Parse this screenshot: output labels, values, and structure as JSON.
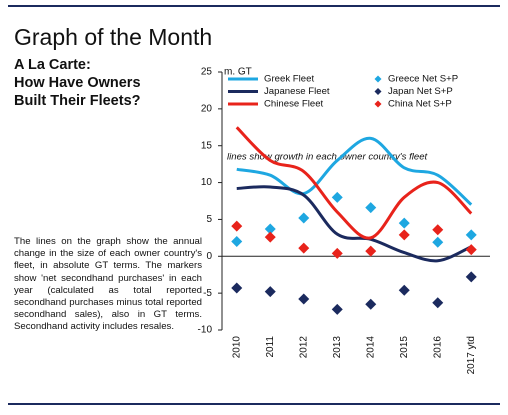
{
  "page_title": "Graph of the Month",
  "heading": [
    "A La Carte:",
    "How Have Owners",
    "Built Their Fleets?"
  ],
  "description": "The lines on the graph show the annual change in the size of each owner country's fleet, in absolute GT terms. The markers show 'net secondhand purchases' in each year (calculated as total reported secondhand purchases minus total reported secondhand sales), also in GT terms. Secondhand activity includes resales.",
  "chart_data": {
    "type": "line",
    "y_label": "m. GT",
    "annotation": "lines show growth in each owner country's fleet",
    "categories": [
      "2010",
      "2011",
      "2012",
      "2013",
      "2014",
      "2015",
      "2016",
      "2017 ytd"
    ],
    "ylim": [
      -10,
      25
    ],
    "yticks": [
      -10,
      -5,
      0,
      5,
      10,
      15,
      20,
      25
    ],
    "series": [
      {
        "name": "Greek Fleet",
        "color": "#1ea7e1",
        "style": "line",
        "values": [
          11.8,
          11.0,
          8.5,
          13,
          16,
          12,
          11,
          7
        ]
      },
      {
        "name": "Japanese Fleet",
        "color": "#1b2a5e",
        "style": "line",
        "values": [
          9.2,
          9.4,
          8.3,
          3,
          2.3,
          0.5,
          -0.6,
          1.3
        ]
      },
      {
        "name": "Chinese Fleet",
        "color": "#e8231b",
        "style": "line",
        "values": [
          17.5,
          13,
          11.5,
          6,
          2.5,
          8,
          10,
          5.8
        ]
      },
      {
        "name": "Greece Net S+P",
        "color": "#1ea7e1",
        "style": "diamond",
        "values": [
          2,
          3.7,
          5.2,
          8,
          6.6,
          4.5,
          1.9,
          2.9
        ]
      },
      {
        "name": "Japan Net S+P",
        "color": "#1b2a5e",
        "style": "diamond",
        "values": [
          -4.3,
          -4.8,
          -5.8,
          -7.2,
          -6.5,
          -4.6,
          -6.3,
          -2.8
        ]
      },
      {
        "name": "China Net S+P",
        "color": "#e8231b",
        "style": "diamond",
        "values": [
          4.1,
          2.6,
          1.1,
          0.4,
          0.7,
          2.9,
          3.6,
          0.9
        ]
      }
    ]
  }
}
